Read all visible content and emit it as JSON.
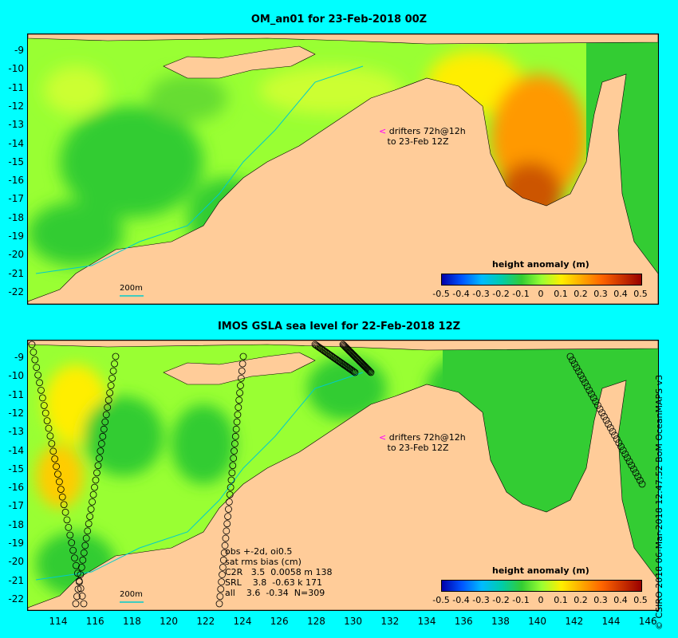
{
  "top_panel": {
    "title": "OM_an01 for 23-Feb-2018 00Z",
    "drifter_line1": "drifters 72h@12h",
    "drifter_line2": "to 23-Feb 12Z",
    "legend_title": "height anomaly (m)",
    "scale_label": "200m"
  },
  "bottom_panel": {
    "title": "IMOS GSLA sea level  for 22-Feb-2018 12Z",
    "drifter_line1": "drifters 72h@12h",
    "drifter_line2": "to 23-Feb 12Z",
    "legend_title": "height anomaly (m)",
    "scale_label": "200m",
    "stats": {
      "line1": "obs +-2d, oi0.5",
      "line2": "sat rms bias (cm)",
      "line3": "C2R   3.5  0.0058 m 138",
      "line4": "SRL    3.8  -0.63 k 171",
      "line5": "all    3.6  -0.34  N=309"
    }
  },
  "colorbar_ticks": [
    "-0.5",
    "-0.4",
    "-0.3",
    "-0.2",
    "-0.1",
    "0",
    "0.1",
    "0.2",
    "0.3",
    "0.4",
    "0.5"
  ],
  "lat_ticks": [
    "-9",
    "-10",
    "-11",
    "-12",
    "-13",
    "-14",
    "-15",
    "-16",
    "-17",
    "-18",
    "-19",
    "-20",
    "-21",
    "-22"
  ],
  "lon_ticks": [
    "114",
    "116",
    "118",
    "120",
    "122",
    "124",
    "126",
    "128",
    "130",
    "132",
    "134",
    "136",
    "138",
    "140",
    "142",
    "144",
    "146"
  ],
  "credit": "© CSIRO 2018  06-Mar-2018 12:47:52 BoM OceanMAPS v3",
  "colors": {
    "background": "#00ffff",
    "land": "#ffcc99",
    "ocean_green": "#33cc33",
    "ocean_yellowgreen": "#99ff33",
    "ocean_yellow": "#ffee00",
    "ocean_orange": "#ff9900",
    "ocean_darkorange": "#cc5500",
    "coast_shelf": "#aaaaaa"
  }
}
